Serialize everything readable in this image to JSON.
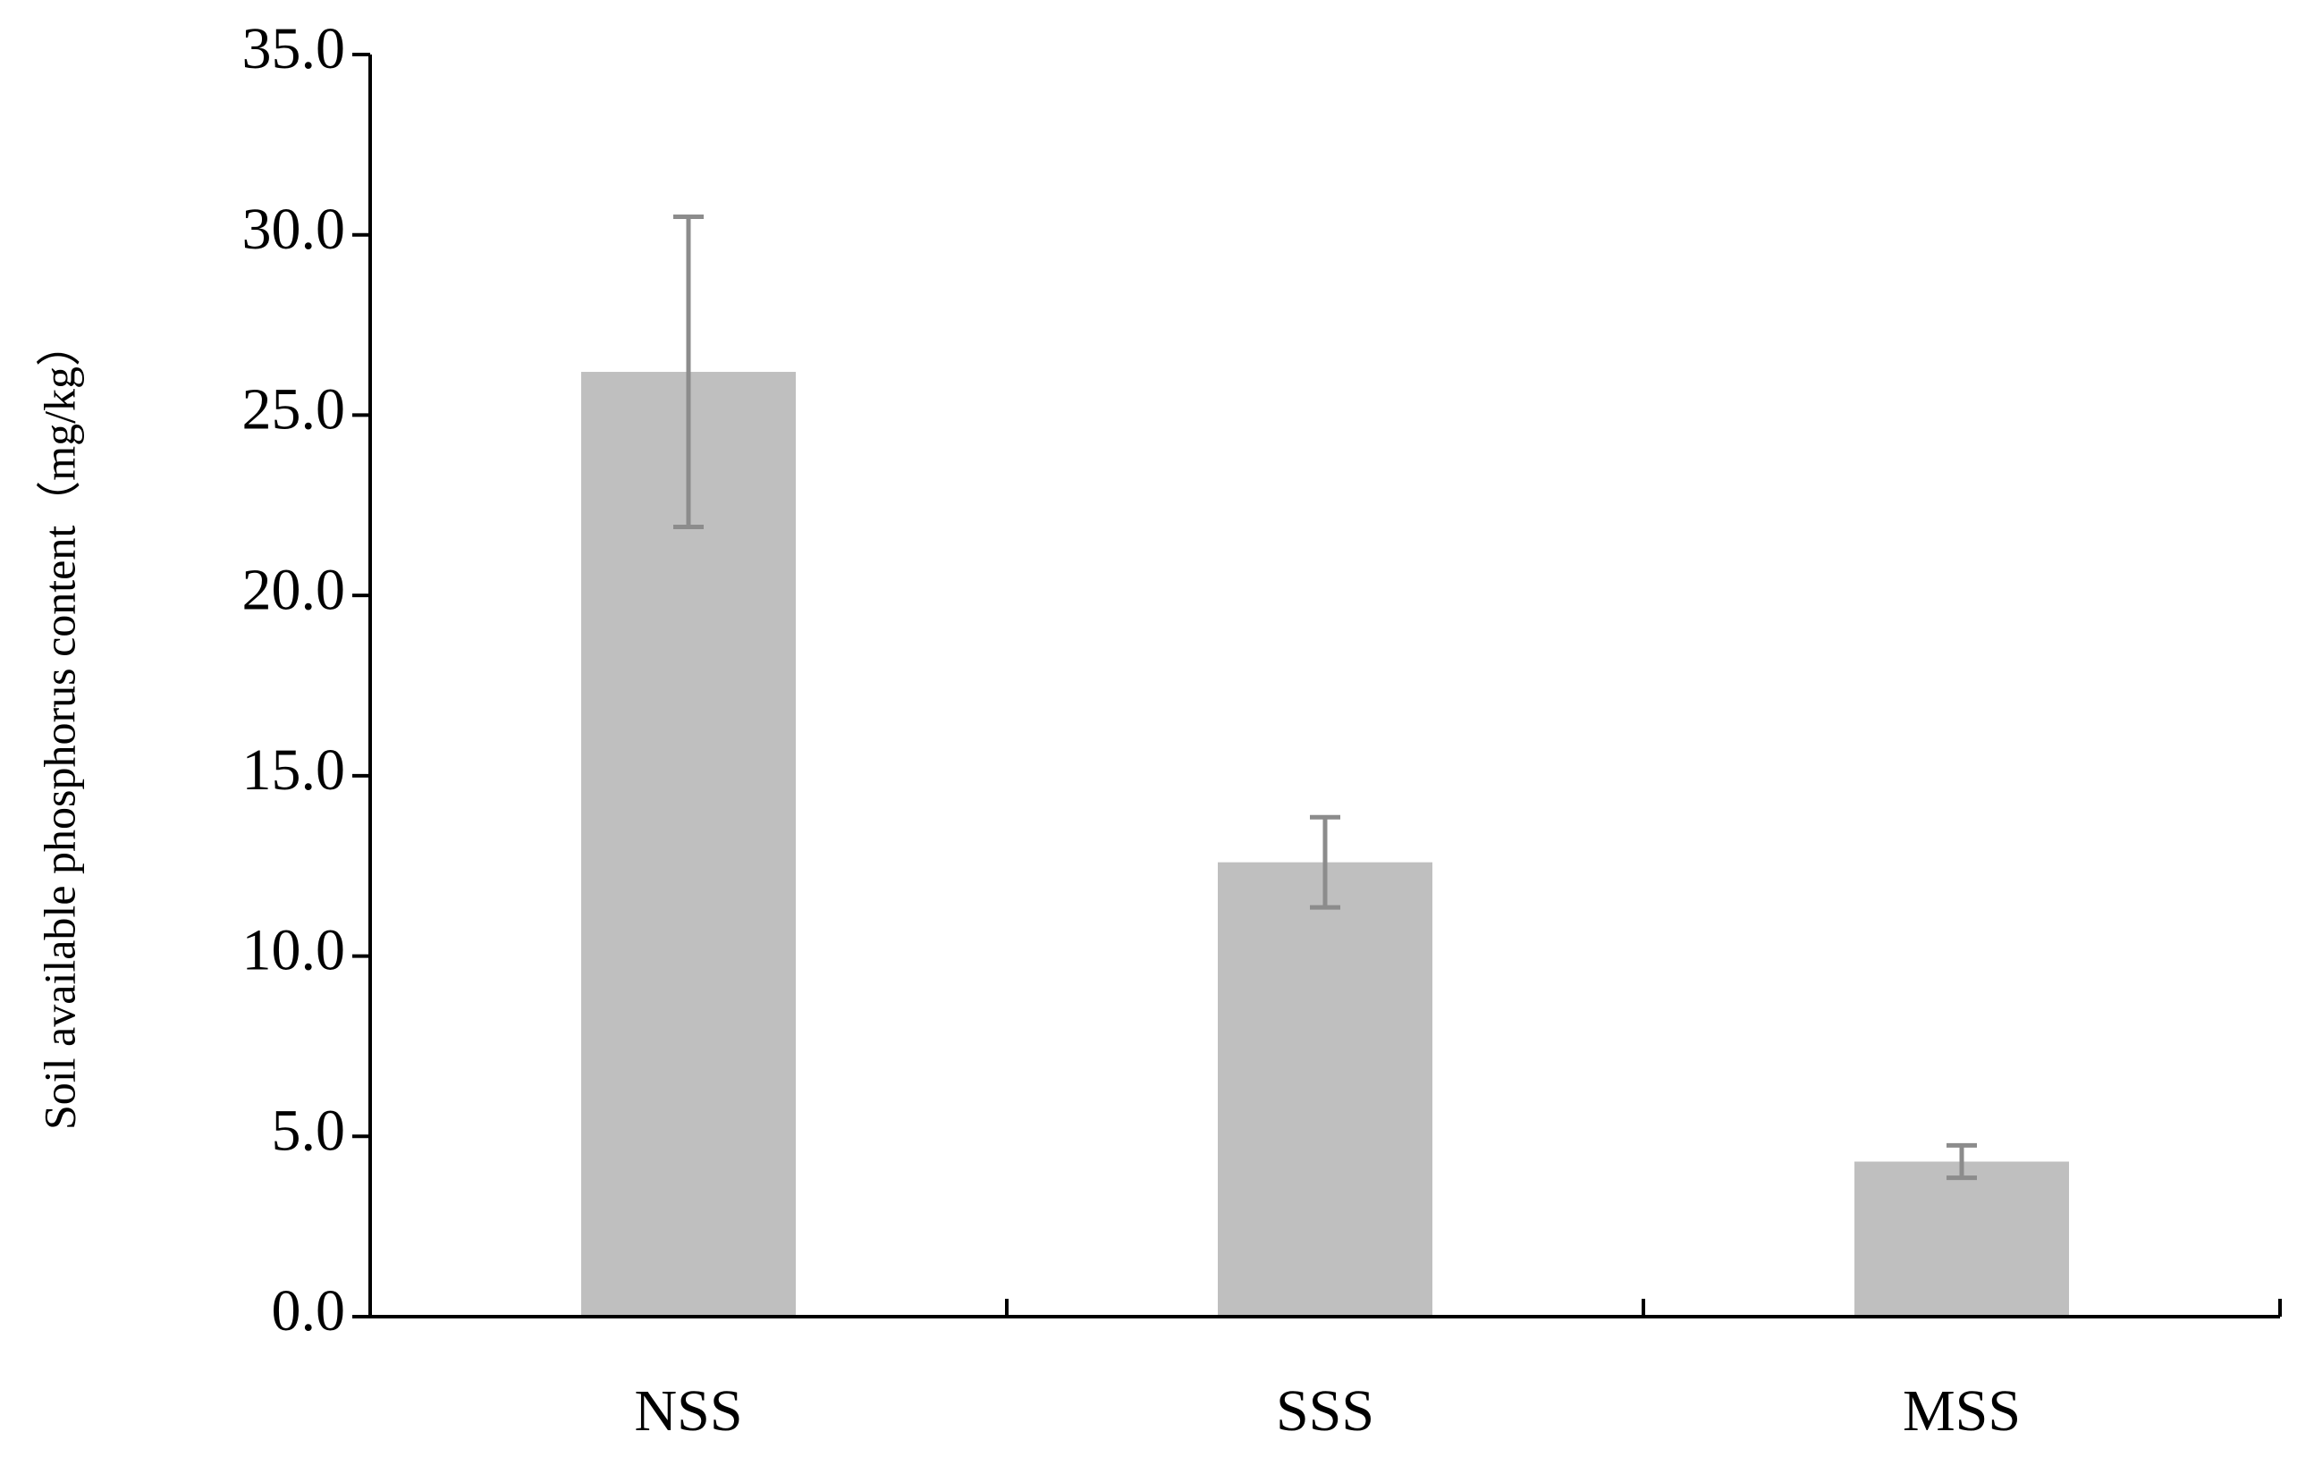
{
  "chart_data": {
    "type": "bar",
    "y_label": "Soil available phosphorus content（mg/kg）",
    "categories": [
      "NSS",
      "SSS",
      "MSS"
    ],
    "values": [
      26.2,
      12.6,
      4.3
    ],
    "errors": [
      4.3,
      1.25,
      0.45
    ],
    "color": "#bfbfbf",
    "error_color": "#8c8c8c",
    "ylim": [
      0,
      35
    ],
    "yticks": [
      {
        "value": 0,
        "label": "0.0"
      },
      {
        "value": 5,
        "label": "5.0"
      },
      {
        "value": 10,
        "label": "10.0"
      },
      {
        "value": 15,
        "label": "15.0"
      },
      {
        "value": 20,
        "label": "20.0"
      },
      {
        "value": 25,
        "label": "25.0"
      },
      {
        "value": 30,
        "label": "30.0"
      },
      {
        "value": 35,
        "label": "35.0"
      }
    ],
    "grid": false
  }
}
